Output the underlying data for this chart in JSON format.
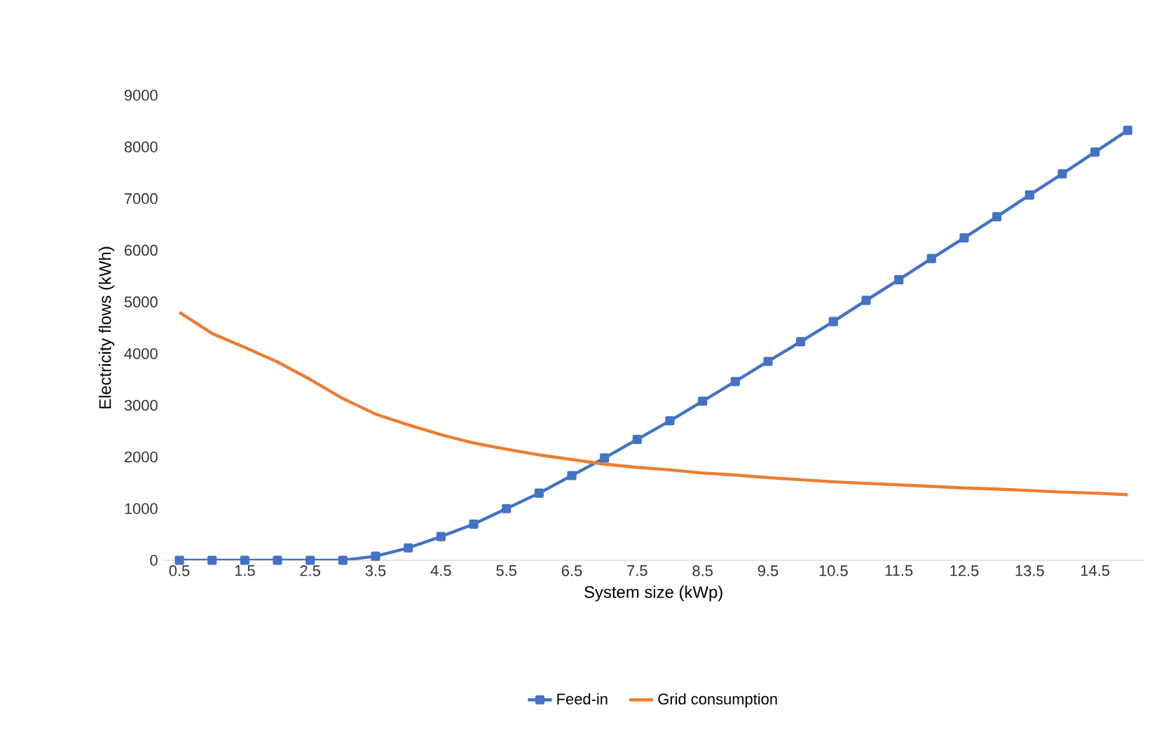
{
  "chart_data": {
    "type": "line",
    "xlabel": "System size (kWp)",
    "ylabel": "Electricity flows (kWh)",
    "categories": [
      "0.5",
      null,
      "1.5",
      null,
      "2.5",
      null,
      "3.5",
      null,
      "4.5",
      null,
      "5.5",
      null,
      "6.5",
      null,
      "7.5",
      null,
      "8.5",
      null,
      "9.5",
      null,
      "10.5",
      null,
      "11.5",
      null,
      "12.5",
      null,
      "13.5",
      null,
      "14.5",
      null
    ],
    "series": [
      {
        "name": "Feed-in",
        "color": "#4472c4",
        "marker": "square",
        "values": [
          0,
          0,
          0,
          0,
          0,
          0,
          80,
          240,
          460,
          700,
          1000,
          1300,
          1640,
          1980,
          2340,
          2700,
          3080,
          3460,
          3850,
          4230,
          4620,
          5030,
          5430,
          5840,
          6240,
          6650,
          7070,
          7480,
          7900,
          8320
        ]
      },
      {
        "name": "Grid consumption",
        "color": "#ed7d31",
        "marker": "none",
        "values": [
          4800,
          4390,
          4120,
          3840,
          3500,
          3130,
          2830,
          2620,
          2430,
          2270,
          2150,
          2040,
          1950,
          1860,
          1800,
          1750,
          1690,
          1650,
          1600,
          1560,
          1520,
          1490,
          1460,
          1430,
          1400,
          1380,
          1350,
          1320,
          1300,
          1270
        ]
      }
    ],
    "ylim": [
      0,
      9000
    ],
    "yticks": [
      0,
      1000,
      2000,
      3000,
      4000,
      5000,
      6000,
      7000,
      8000,
      9000
    ],
    "grid": false,
    "legend": "bottom"
  }
}
